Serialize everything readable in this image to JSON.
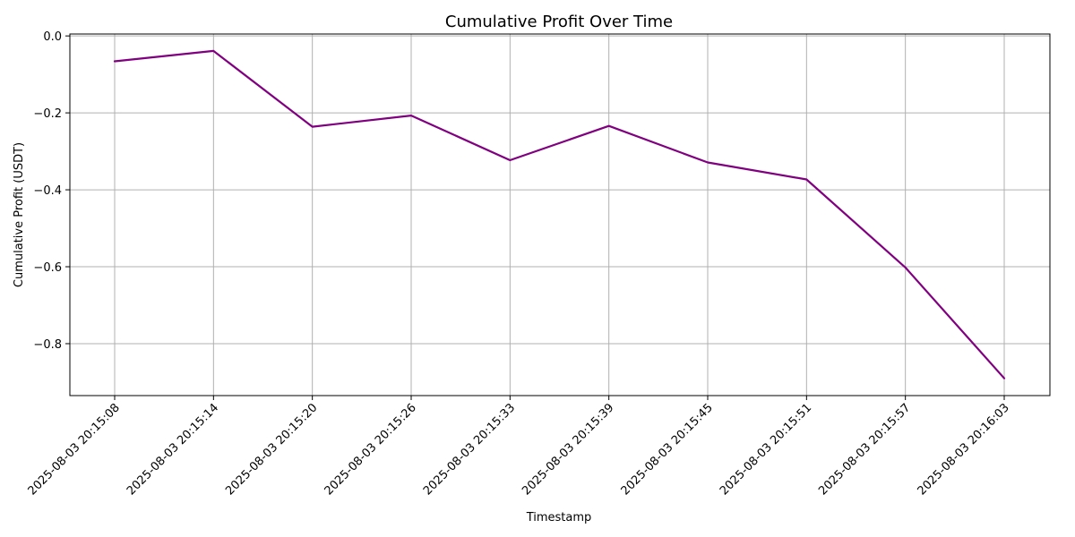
{
  "chart_data": {
    "type": "line",
    "title": "Cumulative Profit Over Time",
    "xlabel": "Timestamp",
    "ylabel": "Cumulative Profit (USDT)",
    "categories": [
      "2025-08-03 20:15:08",
      "2025-08-03 20:15:14",
      "2025-08-03 20:15:20",
      "2025-08-03 20:15:26",
      "2025-08-03 20:15:33",
      "2025-08-03 20:15:39",
      "2025-08-03 20:15:45",
      "2025-08-03 20:15:51",
      "2025-08-03 20:15:57",
      "2025-08-03 20:16:03"
    ],
    "series": [
      {
        "color": "#800080",
        "values": [
          -0.066,
          -0.039,
          -0.236,
          -0.207,
          -0.323,
          -0.234,
          -0.329,
          -0.373,
          -0.602,
          -0.89
        ]
      }
    ],
    "ylim": [
      -0.935,
      0.005
    ],
    "yticks": [
      0.0,
      -0.2,
      -0.4,
      -0.6,
      -0.8
    ],
    "ytick_labels": [
      "0.0",
      "−0.2",
      "−0.4",
      "−0.6",
      "−0.8"
    ],
    "grid": true,
    "legend": "none"
  }
}
